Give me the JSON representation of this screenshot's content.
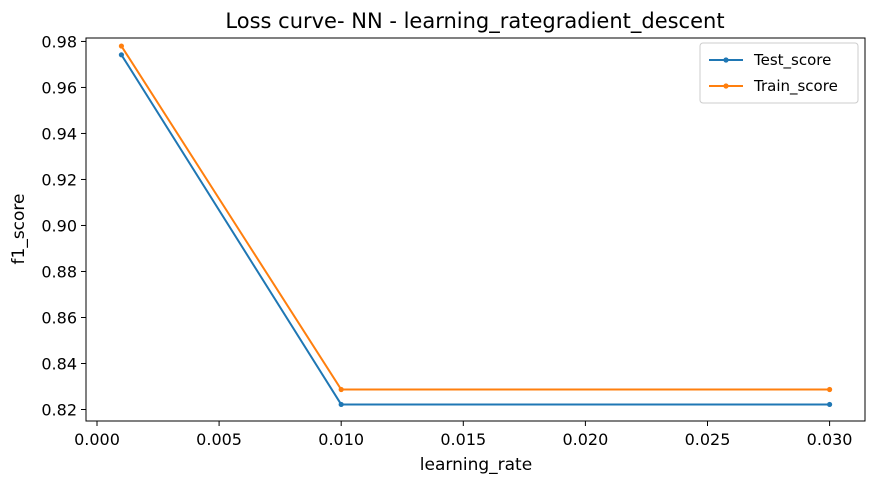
{
  "chart_data": {
    "type": "line",
    "title": "Loss curve- NN - learning_rategradient_descent",
    "xlabel": "learning_rate",
    "ylabel": "f1_score",
    "xlim": [
      -0.00045,
      0.03145
    ],
    "ylim": [
      0.815,
      0.9815
    ],
    "x_ticks": [
      0.0,
      0.005,
      0.01,
      0.015,
      0.02,
      0.025,
      0.03
    ],
    "x_tick_labels": [
      "0.000",
      "0.005",
      "0.010",
      "0.015",
      "0.020",
      "0.025",
      "0.030"
    ],
    "y_ticks": [
      0.82,
      0.84,
      0.86,
      0.88,
      0.9,
      0.92,
      0.94,
      0.96,
      0.98
    ],
    "y_tick_labels": [
      "0.82",
      "0.84",
      "0.86",
      "0.88",
      "0.90",
      "0.92",
      "0.94",
      "0.96",
      "0.98"
    ],
    "x": [
      0.001,
      0.01,
      0.03
    ],
    "series": [
      {
        "name": "Test_score",
        "values": [
          0.9742,
          0.8222,
          0.8222
        ],
        "color": "#1f77b4"
      },
      {
        "name": "Train_score",
        "values": [
          0.978,
          0.8287,
          0.8287
        ],
        "color": "#ff7f0e"
      }
    ],
    "grid": false,
    "legend_position": "top-right"
  }
}
